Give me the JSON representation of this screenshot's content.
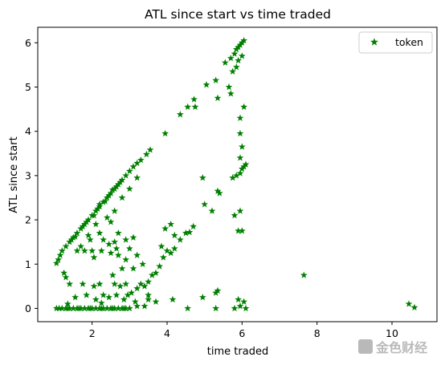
{
  "chart_data": {
    "type": "scatter",
    "title": "ATL since start vs time traded",
    "xlabel": "time traded",
    "ylabel": "ATL since start",
    "xlim": [
      0.55,
      11.2
    ],
    "ylim": [
      -0.3,
      6.35
    ],
    "xticks": [
      2,
      4,
      6,
      8,
      10
    ],
    "yticks": [
      0,
      1,
      2,
      3,
      4,
      5,
      6
    ],
    "grid": false,
    "legend_placement": "top-right",
    "marker": "star",
    "color": "#008000",
    "series": [
      {
        "name": "token",
        "points": [
          [
            1.05,
            0.0
          ],
          [
            1.12,
            0.0
          ],
          [
            1.2,
            0.0
          ],
          [
            1.3,
            0.0
          ],
          [
            1.4,
            0.0
          ],
          [
            1.5,
            0.0
          ],
          [
            1.6,
            0.0
          ],
          [
            1.7,
            0.0
          ],
          [
            1.8,
            0.0
          ],
          [
            1.9,
            0.0
          ],
          [
            2.0,
            0.0
          ],
          [
            2.1,
            0.0
          ],
          [
            2.2,
            0.0
          ],
          [
            2.3,
            0.0
          ],
          [
            2.4,
            0.0
          ],
          [
            2.5,
            0.0
          ],
          [
            2.6,
            0.0
          ],
          [
            2.7,
            0.0
          ],
          [
            2.8,
            0.0
          ],
          [
            2.9,
            0.0
          ],
          [
            3.0,
            0.0
          ],
          [
            1.35,
            0.0
          ],
          [
            1.65,
            0.0
          ],
          [
            1.95,
            0.0
          ],
          [
            2.25,
            0.0
          ],
          [
            2.55,
            0.0
          ],
          [
            2.85,
            0.0
          ],
          [
            1.05,
            1.02
          ],
          [
            1.1,
            1.1
          ],
          [
            1.15,
            1.2
          ],
          [
            1.2,
            1.3
          ],
          [
            1.3,
            1.4
          ],
          [
            1.4,
            1.5
          ],
          [
            1.5,
            1.6
          ],
          [
            1.6,
            1.7
          ],
          [
            1.7,
            1.8
          ],
          [
            1.8,
            1.9
          ],
          [
            1.9,
            2.0
          ],
          [
            2.0,
            2.1
          ],
          [
            2.1,
            2.2
          ],
          [
            2.2,
            2.3
          ],
          [
            2.3,
            2.4
          ],
          [
            2.4,
            2.5
          ],
          [
            2.5,
            2.6
          ],
          [
            2.6,
            2.7
          ],
          [
            2.7,
            2.8
          ],
          [
            2.8,
            2.9
          ],
          [
            2.9,
            3.0
          ],
          [
            3.0,
            3.1
          ],
          [
            3.1,
            3.2
          ],
          [
            3.2,
            3.28
          ],
          [
            3.3,
            3.35
          ],
          [
            3.45,
            3.48
          ],
          [
            3.55,
            3.58
          ],
          [
            1.55,
            1.62
          ],
          [
            1.85,
            1.95
          ],
          [
            2.15,
            2.25
          ],
          [
            2.45,
            2.55
          ],
          [
            2.75,
            2.85
          ],
          [
            2.35,
            2.42
          ],
          [
            2.55,
            2.68
          ],
          [
            2.65,
            2.75
          ],
          [
            2.2,
            2.35
          ],
          [
            1.45,
            1.55
          ],
          [
            1.75,
            1.85
          ],
          [
            2.05,
            2.1
          ],
          [
            2.4,
            2.05
          ],
          [
            2.6,
            2.2
          ],
          [
            2.8,
            2.5
          ],
          [
            3.0,
            2.7
          ],
          [
            3.2,
            2.95
          ],
          [
            2.5,
            1.95
          ],
          [
            2.7,
            1.7
          ],
          [
            2.9,
            1.55
          ],
          [
            3.1,
            1.6
          ],
          [
            2.2,
            1.7
          ],
          [
            2.1,
            1.9
          ],
          [
            1.9,
            1.65
          ],
          [
            1.7,
            1.4
          ],
          [
            2.3,
            1.55
          ],
          [
            2.6,
            1.5
          ],
          [
            1.25,
            0.8
          ],
          [
            1.3,
            0.7
          ],
          [
            1.4,
            0.55
          ],
          [
            1.6,
            1.3
          ],
          [
            1.8,
            1.3
          ],
          [
            2.0,
            1.3
          ],
          [
            2.25,
            1.3
          ],
          [
            2.5,
            1.25
          ],
          [
            2.7,
            1.2
          ],
          [
            2.9,
            1.1
          ],
          [
            3.0,
            1.35
          ],
          [
            3.2,
            1.2
          ],
          [
            3.35,
            1.0
          ],
          [
            3.1,
            0.9
          ],
          [
            2.8,
            0.9
          ],
          [
            2.55,
            0.75
          ],
          [
            2.45,
            1.45
          ],
          [
            2.65,
            1.35
          ],
          [
            1.95,
            1.55
          ],
          [
            2.05,
            1.15
          ],
          [
            2.75,
            0.5
          ],
          [
            2.9,
            0.55
          ],
          [
            3.05,
            0.35
          ],
          [
            3.2,
            0.45
          ],
          [
            3.3,
            0.55
          ],
          [
            3.4,
            0.5
          ],
          [
            3.5,
            0.6
          ],
          [
            3.6,
            0.75
          ],
          [
            3.7,
            0.8
          ],
          [
            3.8,
            0.95
          ],
          [
            3.9,
            1.15
          ],
          [
            4.0,
            1.3
          ],
          [
            4.1,
            1.25
          ],
          [
            4.2,
            1.35
          ],
          [
            4.35,
            1.55
          ],
          [
            4.5,
            1.7
          ],
          [
            4.6,
            1.72
          ],
          [
            4.7,
            1.85
          ],
          [
            4.2,
            1.65
          ],
          [
            4.1,
            1.9
          ],
          [
            3.95,
            1.8
          ],
          [
            3.85,
            1.4
          ],
          [
            2.45,
            0.25
          ],
          [
            2.65,
            0.3
          ],
          [
            2.85,
            0.2
          ],
          [
            3.15,
            0.15
          ],
          [
            3.4,
            0.05
          ],
          [
            3.5,
            0.2
          ],
          [
            2.1,
            0.2
          ],
          [
            2.3,
            0.3
          ],
          [
            1.85,
            0.3
          ],
          [
            1.55,
            0.25
          ],
          [
            1.75,
            0.55
          ],
          [
            2.05,
            0.5
          ],
          [
            2.2,
            0.55
          ],
          [
            2.6,
            0.55
          ],
          [
            3.2,
            0.05
          ],
          [
            1.35,
            0.1
          ],
          [
            2.25,
            0.12
          ],
          [
            3.7,
            0.15
          ],
          [
            3.5,
            0.3
          ],
          [
            2.95,
            0.3
          ],
          [
            3.95,
            3.95
          ],
          [
            4.35,
            4.38
          ],
          [
            4.55,
            4.55
          ],
          [
            4.72,
            4.72
          ],
          [
            5.05,
            5.05
          ],
          [
            5.3,
            5.15
          ],
          [
            5.55,
            5.55
          ],
          [
            5.7,
            5.65
          ],
          [
            5.8,
            5.75
          ],
          [
            5.85,
            5.85
          ],
          [
            5.9,
            5.9
          ],
          [
            5.95,
            5.95
          ],
          [
            6.0,
            6.0
          ],
          [
            6.05,
            6.05
          ],
          [
            5.75,
            5.35
          ],
          [
            5.85,
            5.45
          ],
          [
            5.9,
            5.6
          ],
          [
            6.0,
            5.7
          ],
          [
            5.65,
            5.0
          ],
          [
            5.7,
            4.85
          ],
          [
            5.35,
            4.75
          ],
          [
            4.75,
            4.55
          ],
          [
            5.95,
            4.3
          ],
          [
            6.05,
            4.55
          ],
          [
            5.95,
            3.95
          ],
          [
            5.85,
            3.0
          ],
          [
            5.95,
            3.05
          ],
          [
            6.0,
            3.15
          ],
          [
            6.05,
            3.2
          ],
          [
            6.1,
            3.25
          ],
          [
            5.95,
            3.4
          ],
          [
            6.0,
            3.65
          ],
          [
            5.75,
            2.95
          ],
          [
            4.95,
            2.95
          ],
          [
            5.0,
            2.35
          ],
          [
            5.35,
            2.65
          ],
          [
            5.4,
            2.6
          ],
          [
            5.2,
            2.2
          ],
          [
            5.8,
            2.1
          ],
          [
            5.95,
            2.2
          ],
          [
            5.9,
            1.75
          ],
          [
            6.0,
            1.75
          ],
          [
            5.3,
            0.35
          ],
          [
            5.35,
            0.4
          ],
          [
            5.9,
            0.2
          ],
          [
            6.05,
            0.15
          ],
          [
            5.95,
            0.05
          ],
          [
            6.1,
            0.0
          ],
          [
            4.95,
            0.25
          ],
          [
            5.3,
            0.0
          ],
          [
            4.55,
            0.0
          ],
          [
            4.15,
            0.2
          ],
          [
            5.8,
            0.0
          ],
          [
            7.65,
            0.75
          ],
          [
            10.45,
            0.1
          ],
          [
            10.6,
            0.02
          ]
        ]
      }
    ]
  },
  "watermark": {
    "text": "金色财经"
  }
}
